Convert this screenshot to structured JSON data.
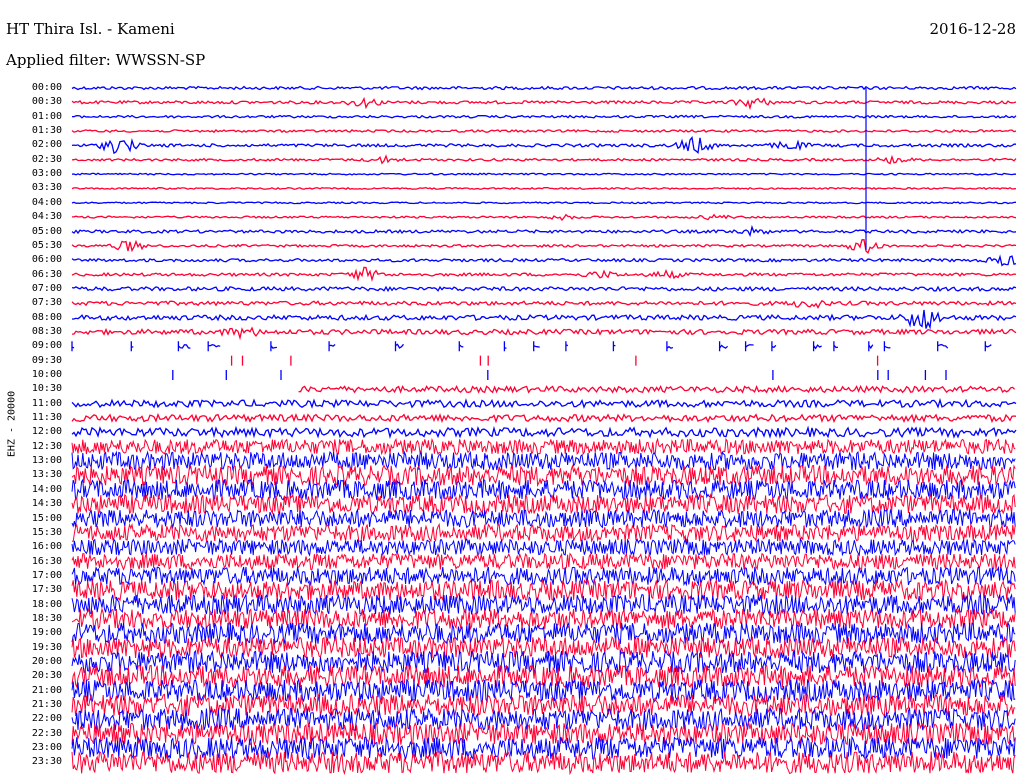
{
  "header": {
    "station": "HT Thira Isl. - Kameni",
    "date": "2016-12-28",
    "filter": "Applied filter: WWSSN-SP"
  },
  "channel_label": "EHZ - 20000",
  "colors": {
    "trace_a": "#0000ff",
    "trace_b": "#ff0033",
    "text": "#000000"
  },
  "chart_data": {
    "type": "line",
    "title": "HT Thira Isl. - Kameni",
    "subtitle": "Applied filter: WWSSN-SP",
    "ylabel": "EHZ - 20000",
    "xlabel": "",
    "grid": false,
    "rows": [
      {
        "label": "00:00",
        "amp": 1.5,
        "seg": "full"
      },
      {
        "label": "00:30",
        "amp": 1.5,
        "seg": "full",
        "events": [
          [
            0.31,
            4
          ],
          [
            0.72,
            5
          ]
        ]
      },
      {
        "label": "01:00",
        "amp": 1.2,
        "seg": "full"
      },
      {
        "label": "01:30",
        "amp": 1.2,
        "seg": "full"
      },
      {
        "label": "02:00",
        "amp": 1.5,
        "seg": "full",
        "events": [
          [
            0.05,
            8
          ],
          [
            0.66,
            8
          ],
          [
            0.76,
            4
          ]
        ]
      },
      {
        "label": "02:30",
        "amp": 1.2,
        "seg": "full",
        "events": [
          [
            0.33,
            3
          ],
          [
            0.87,
            3
          ]
        ]
      },
      {
        "label": "03:00",
        "amp": 0.8,
        "seg": "full"
      },
      {
        "label": "03:30",
        "amp": 0.8,
        "seg": "full"
      },
      {
        "label": "04:00",
        "amp": 0.8,
        "seg": "full"
      },
      {
        "label": "04:30",
        "amp": 1.0,
        "seg": "full",
        "events": [
          [
            0.52,
            2
          ],
          [
            0.68,
            2
          ]
        ]
      },
      {
        "label": "05:00",
        "amp": 1.5,
        "seg": "full",
        "events": [
          [
            0.72,
            3
          ]
        ]
      },
      {
        "label": "05:30",
        "amp": 1.2,
        "seg": "full",
        "events": [
          [
            0.06,
            5
          ],
          [
            0.84,
            7
          ]
        ]
      },
      {
        "label": "06:00",
        "amp": 1.5,
        "seg": "full",
        "events": [
          [
            0.99,
            5
          ]
        ]
      },
      {
        "label": "06:30",
        "amp": 1.5,
        "seg": "full",
        "events": [
          [
            0.31,
            6
          ],
          [
            0.56,
            3
          ],
          [
            0.63,
            3
          ]
        ]
      },
      {
        "label": "07:00",
        "amp": 2.0,
        "seg": "full"
      },
      {
        "label": "07:30",
        "amp": 2.0,
        "seg": "full",
        "events": [
          [
            0.78,
            4
          ]
        ]
      },
      {
        "label": "08:00",
        "amp": 2.5,
        "seg": "full",
        "events": [
          [
            0.9,
            12
          ]
        ]
      },
      {
        "label": "08:30",
        "amp": 2.5,
        "seg": "full",
        "events": [
          [
            0.18,
            4
          ]
        ]
      },
      {
        "label": "09:00",
        "amp": 2.0,
        "seg": "gaps"
      },
      {
        "label": "09:30",
        "amp": 2.0,
        "seg": "sparse"
      },
      {
        "label": "10:00",
        "amp": 2.0,
        "seg": "sparse"
      },
      {
        "label": "10:30",
        "amp": 3.0,
        "seg": "from",
        "from": 0.24
      },
      {
        "label": "11:00",
        "amp": 3.5,
        "seg": "full"
      },
      {
        "label": "11:30",
        "amp": 3.5,
        "seg": "full"
      },
      {
        "label": "12:00",
        "amp": 4.5,
        "seg": "full"
      },
      {
        "label": "12:30",
        "amp": 7.5,
        "seg": "full"
      },
      {
        "label": "13:00",
        "amp": 9.0,
        "seg": "full"
      },
      {
        "label": "13:30",
        "amp": 10.0,
        "seg": "full"
      },
      {
        "label": "14:00",
        "amp": 10.0,
        "seg": "full"
      },
      {
        "label": "14:30",
        "amp": 9.5,
        "seg": "full"
      },
      {
        "label": "15:00",
        "amp": 9.0,
        "seg": "full"
      },
      {
        "label": "15:30",
        "amp": 8.5,
        "seg": "full"
      },
      {
        "label": "16:00",
        "amp": 8.0,
        "seg": "full"
      },
      {
        "label": "16:30",
        "amp": 8.0,
        "seg": "full"
      },
      {
        "label": "17:00",
        "amp": 9.0,
        "seg": "full"
      },
      {
        "label": "17:30",
        "amp": 10.0,
        "seg": "full"
      },
      {
        "label": "18:00",
        "amp": 10.0,
        "seg": "full"
      },
      {
        "label": "18:30",
        "amp": 10.0,
        "seg": "full"
      },
      {
        "label": "19:00",
        "amp": 10.5,
        "seg": "full"
      },
      {
        "label": "19:30",
        "amp": 10.5,
        "seg": "full"
      },
      {
        "label": "20:00",
        "amp": 11.0,
        "seg": "full"
      },
      {
        "label": "20:30",
        "amp": 11.0,
        "seg": "full"
      },
      {
        "label": "21:00",
        "amp": 11.0,
        "seg": "full"
      },
      {
        "label": "21:30",
        "amp": 11.0,
        "seg": "full"
      },
      {
        "label": "22:00",
        "amp": 11.0,
        "seg": "full"
      },
      {
        "label": "22:30",
        "amp": 11.0,
        "seg": "full"
      },
      {
        "label": "23:00",
        "amp": 11.0,
        "seg": "full"
      },
      {
        "label": "23:30",
        "amp": 11.0,
        "seg": "full"
      }
    ]
  }
}
